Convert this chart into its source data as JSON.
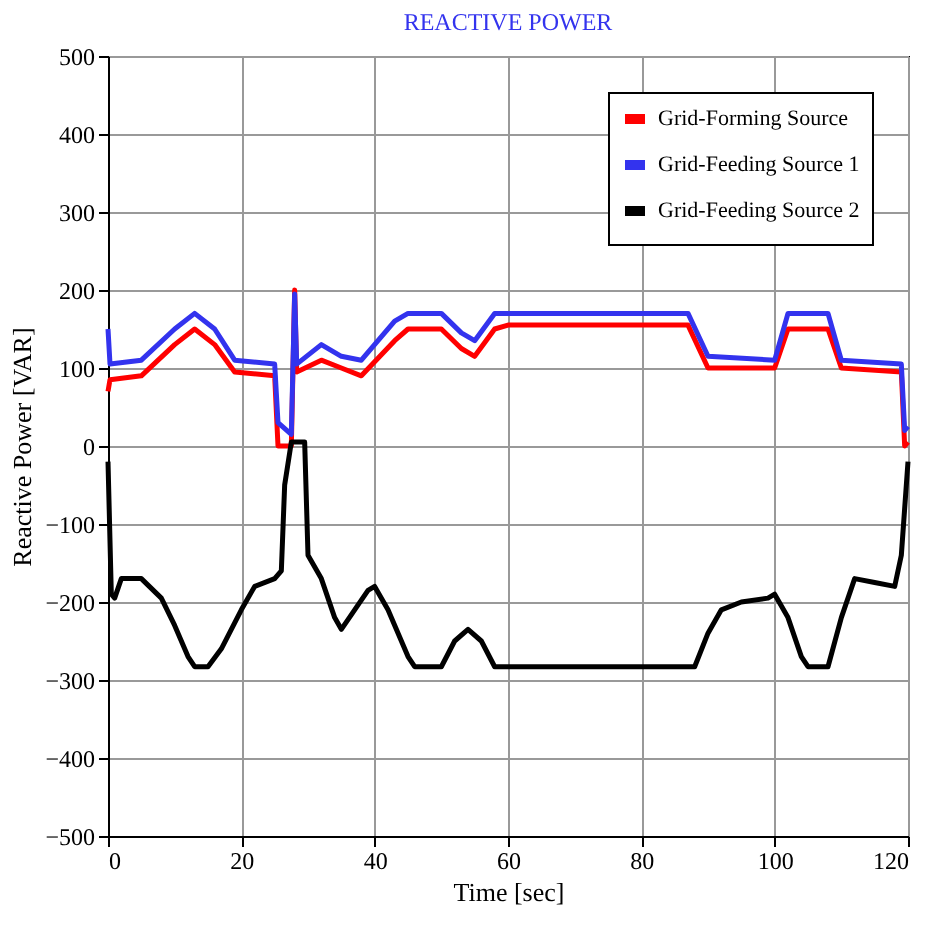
{
  "chart_data": {
    "type": "line",
    "title": "REACTIVE POWER",
    "xlabel": "Time [sec]",
    "ylabel": "Reactive Power [VAR]",
    "xlim": [
      0,
      120
    ],
    "xticks": [
      0,
      20,
      40,
      60,
      80,
      100,
      120
    ],
    "ylim": [
      -500,
      500
    ],
    "yticks": [
      -500,
      -400,
      -300,
      -200,
      -100,
      0,
      100,
      200,
      300,
      400,
      500
    ],
    "grid": true,
    "legend": "top right",
    "series": [
      {
        "name": "Grid-Forming Source",
        "color": "#ff0000",
        "x": [
          0,
          0.3,
          5,
          10,
          13,
          16,
          19,
          25,
          25.5,
          27.5,
          28,
          28.3,
          32,
          35,
          38,
          43,
          45,
          50,
          53,
          55,
          58,
          60,
          87,
          90,
          100,
          102,
          108,
          110,
          119,
          119.5,
          120
        ],
        "values": [
          70,
          85,
          90,
          130,
          150,
          130,
          95,
          90,
          0,
          0,
          200,
          95,
          110,
          100,
          90,
          135,
          150,
          150,
          125,
          115,
          150,
          155,
          155,
          100,
          100,
          150,
          150,
          100,
          95,
          0,
          5
        ]
      },
      {
        "name": "Grid-Feeding Source 1",
        "color": "#3333ee",
        "x": [
          0,
          0.3,
          5,
          10,
          13,
          16,
          19,
          25,
          25.5,
          27.5,
          28,
          28.3,
          32,
          35,
          38,
          43,
          45,
          50,
          53,
          55,
          58,
          60,
          87,
          90,
          100,
          102,
          108,
          110,
          119,
          119.5,
          120
        ],
        "values": [
          150,
          105,
          110,
          150,
          170,
          150,
          110,
          105,
          30,
          15,
          195,
          105,
          130,
          115,
          110,
          160,
          170,
          170,
          145,
          135,
          170,
          170,
          170,
          115,
          110,
          170,
          170,
          110,
          105,
          20,
          25
        ]
      },
      {
        "name": "Grid-Feeding Source 2",
        "color": "#000000",
        "x": [
          0,
          0.5,
          1,
          2,
          5,
          8,
          10,
          12,
          13,
          15,
          17,
          20,
          22,
          25,
          26,
          26.5,
          27.5,
          29.5,
          30,
          32,
          34,
          35,
          37,
          39,
          40,
          42,
          45,
          46,
          50,
          52,
          54,
          56,
          58,
          60,
          88,
          90,
          92,
          95,
          99,
          100,
          102,
          104,
          105,
          108,
          110,
          112,
          115,
          118,
          119,
          120
        ],
        "values": [
          -20,
          -190,
          -195,
          -170,
          -170,
          -195,
          -230,
          -270,
          -283,
          -283,
          -260,
          -210,
          -180,
          -170,
          -160,
          -50,
          5,
          5,
          -140,
          -170,
          -220,
          -235,
          -210,
          -185,
          -180,
          -210,
          -270,
          -283,
          -283,
          -250,
          -235,
          -250,
          -283,
          -283,
          -283,
          -240,
          -210,
          -200,
          -195,
          -190,
          -220,
          -270,
          -283,
          -283,
          -220,
          -170,
          -175,
          -180,
          -140,
          -20
        ]
      }
    ]
  }
}
